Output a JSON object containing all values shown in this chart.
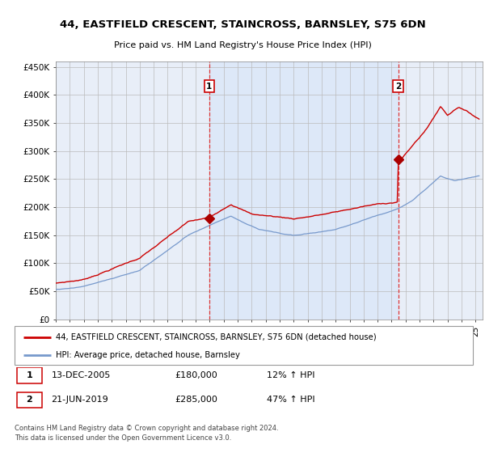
{
  "title": "44, EASTFIELD CRESCENT, STAINCROSS, BARNSLEY, S75 6DN",
  "subtitle": "Price paid vs. HM Land Registry's House Price Index (HPI)",
  "ylim": [
    0,
    460000
  ],
  "yticks": [
    0,
    50000,
    100000,
    150000,
    200000,
    250000,
    300000,
    350000,
    400000,
    450000
  ],
  "ytick_labels": [
    "£0",
    "£50K",
    "£100K",
    "£150K",
    "£200K",
    "£250K",
    "£300K",
    "£350K",
    "£400K",
    "£450K"
  ],
  "xlim_start": 1995.0,
  "xlim_end": 2025.5,
  "plot_bg_color": "#e8eef8",
  "plot_bg_color2": "#dde6f5",
  "grid_color": "#bbbbbb",
  "sale1_x": 2005.96,
  "sale1_y": 180000,
  "sale1_label": "1",
  "sale1_date": "13-DEC-2005",
  "sale1_price": "£180,000",
  "sale1_hpi": "12% ↑ HPI",
  "sale2_x": 2019.47,
  "sale2_y": 285000,
  "sale2_label": "2",
  "sale2_date": "21-JUN-2019",
  "sale2_price": "£285,000",
  "sale2_hpi": "47% ↑ HPI",
  "line1_color": "#cc0000",
  "line2_color": "#7799cc",
  "line1_label": "44, EASTFIELD CRESCENT, STAINCROSS, BARNSLEY, S75 6DN (detached house)",
  "line2_label": "HPI: Average price, detached house, Barnsley",
  "footer": "Contains HM Land Registry data © Crown copyright and database right 2024.\nThis data is licensed under the Open Government Licence v3.0.",
  "marker_color": "#aa0000",
  "dashed_line_color": "#dd3333",
  "box_outline_color": "#cc0000",
  "legend_border_color": "#999999",
  "shade_color": "#dde8f8"
}
